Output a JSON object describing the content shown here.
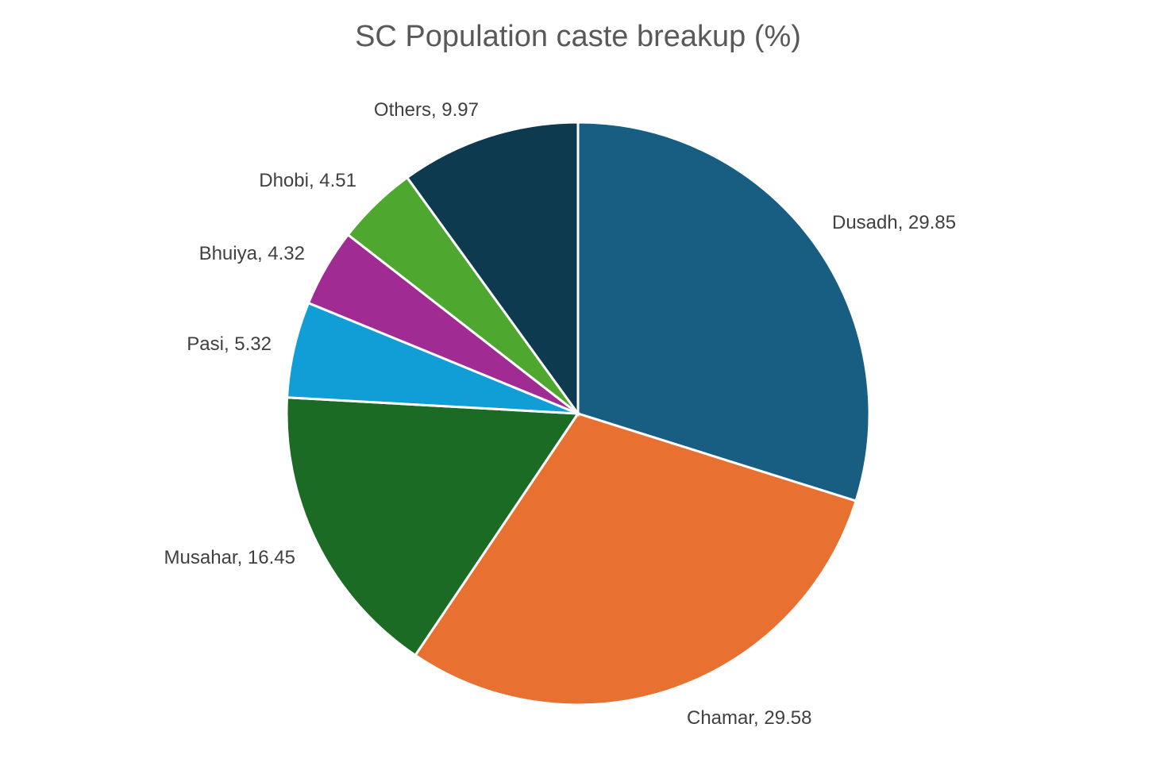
{
  "chart_data": {
    "type": "pie",
    "title": "SC Population caste breakup (%)",
    "start_angle_deg": 0,
    "direction": "clockwise",
    "slices": [
      {
        "label": "Dusadh",
        "value": 29.85,
        "display": "Dusadh, 29.85",
        "color": "#175E82"
      },
      {
        "label": "Chamar",
        "value": 29.58,
        "display": "Chamar, 29.58",
        "color": "#E87132"
      },
      {
        "label": "Musahar",
        "value": 16.45,
        "display": "Musahar, 16.45",
        "color": "#1B6B24"
      },
      {
        "label": "Pasi",
        "value": 5.32,
        "display": "Pasi, 5.32",
        "color": "#119DD6"
      },
      {
        "label": "Bhuiya",
        "value": 4.32,
        "display": "Bhuiya, 4.32",
        "color": "#A02B93"
      },
      {
        "label": "Dhobi",
        "value": 4.51,
        "display": "Dhobi, 4.51",
        "color": "#4EA72E"
      },
      {
        "label": "Others",
        "value": 9.97,
        "display": "Others, 9.97",
        "color": "#0E3A50"
      }
    ]
  }
}
